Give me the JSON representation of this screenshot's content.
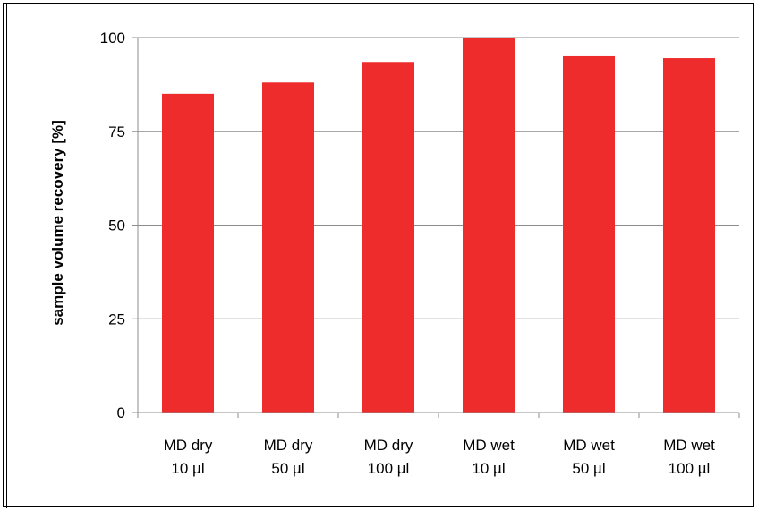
{
  "chart_data": {
    "type": "bar",
    "title": "",
    "xlabel": "",
    "ylabel": "sample volume recovery [%]",
    "ylim": [
      0,
      100
    ],
    "yticks": [
      0,
      25,
      50,
      75,
      100
    ],
    "grid": true,
    "categories": [
      [
        "MD dry",
        "10 µl"
      ],
      [
        "MD dry",
        "50 µl"
      ],
      [
        "MD dry",
        "100 µl"
      ],
      [
        "MD wet",
        "10 µl"
      ],
      [
        "MD wet",
        "50 µl"
      ],
      [
        "MD wet",
        "100 µl"
      ]
    ],
    "values": [
      85,
      88,
      93.5,
      100,
      95,
      94.5
    ],
    "bar_color": "#ee2c2c"
  }
}
